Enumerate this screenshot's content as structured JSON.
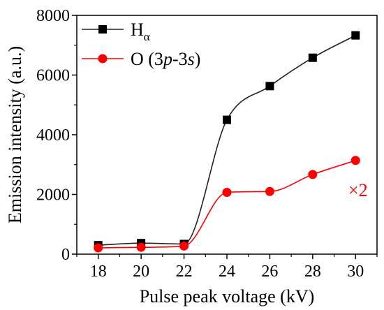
{
  "chart_data": {
    "type": "scatter",
    "xlabel": "Pulse peak voltage (kV)",
    "ylabel": "Emission intensity (a.u.)",
    "xlim": [
      17,
      31
    ],
    "ylim": [
      0,
      8000
    ],
    "xticks": [
      18,
      20,
      22,
      24,
      26,
      28,
      30
    ],
    "yticks": [
      0,
      2000,
      4000,
      6000,
      8000
    ],
    "grid": false,
    "legend_position": "top-left",
    "series": [
      {
        "name": "Hα",
        "legend_main": "H",
        "legend_sub": "α",
        "marker": "square",
        "color": "#000000",
        "line_color": "#222222",
        "x": [
          18,
          20,
          22,
          24,
          26,
          28,
          30
        ],
        "y": [
          300,
          370,
          340,
          4500,
          5630,
          6580,
          7330
        ]
      },
      {
        "name": "O (3p-3s)",
        "legend_prefix": "O (3",
        "legend_p": "p",
        "legend_mid": "-3",
        "legend_s": "s",
        "legend_suffix": ")",
        "marker": "circle",
        "color": "#ff0000",
        "line_color": "#ff0000",
        "x": [
          18,
          20,
          22,
          24,
          26,
          28,
          30
        ],
        "y": [
          210,
          230,
          270,
          2070,
          2100,
          2670,
          3140
        ]
      }
    ],
    "annotation": {
      "text": "×2",
      "color": "#ff0000"
    }
  }
}
